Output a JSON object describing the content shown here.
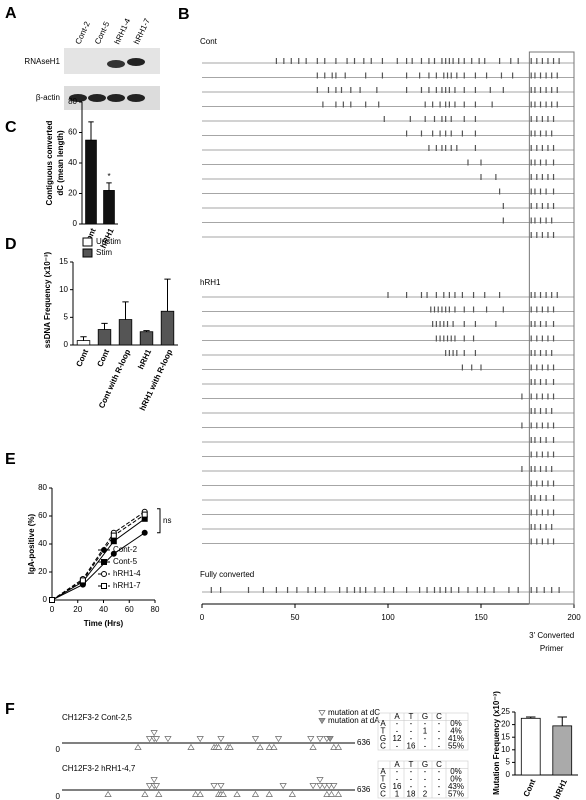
{
  "blot": {
    "panel": "A",
    "lanes": [
      "Cont-2",
      "Cont-5",
      "hRH1-4",
      "hRH1-7"
    ],
    "rows": [
      "RNAseH1",
      "β-actin"
    ]
  },
  "chart_data": [
    {
      "panel": "C",
      "type": "bar",
      "ylabel": [
        "Contiguous converted",
        "dC (mean length)"
      ],
      "categories": [
        "Cont",
        "hRH1"
      ],
      "series": [
        {
          "color": "#111111",
          "values": [
            55,
            22
          ],
          "errors": [
            12,
            5
          ]
        }
      ],
      "ylim": [
        0,
        80
      ],
      "yticks": [
        0,
        20,
        40,
        60,
        80
      ],
      "annotation": "*"
    },
    {
      "panel": "D",
      "type": "bar",
      "ylabel": [
        "ssDNA Frequency (x10⁻³)"
      ],
      "categories": [
        "Cont",
        "Cont",
        "Cont with R-loop",
        "hRH1",
        "hRH1 with R-loop"
      ],
      "series": [
        {
          "name": "Unstim",
          "color": "#ffffff",
          "values": [
            0.8,
            null,
            null,
            null,
            null
          ],
          "errors": [
            0.7,
            null,
            null,
            null,
            null
          ]
        },
        {
          "name": "Stim",
          "color": "#555555",
          "values": [
            null,
            2.8,
            4.6,
            2.4,
            6.1
          ],
          "errors": [
            null,
            1.1,
            3.2,
            0.2,
            5.8
          ]
        }
      ],
      "ylim": [
        0,
        15
      ],
      "yticks": [
        0,
        5,
        10,
        15
      ]
    },
    {
      "panel": "E",
      "type": "line",
      "xlabel": "Time (Hrs)",
      "ylabel": [
        "IgA-positive (%)"
      ],
      "x": [
        0,
        24,
        48,
        72
      ],
      "series": [
        {
          "name": "Cont-2",
          "color": "#000000",
          "marker": "circle",
          "filled": true,
          "dashed": false,
          "values": [
            0,
            11,
            33,
            48
          ]
        },
        {
          "name": "Cont-5",
          "color": "#000000",
          "marker": "square",
          "filled": true,
          "dashed": false,
          "values": [
            0,
            13,
            42,
            58
          ]
        },
        {
          "name": "hRH1-4",
          "color": "#000000",
          "marker": "circle",
          "filled": false,
          "dashed": true,
          "values": [
            0,
            15,
            48,
            63
          ]
        },
        {
          "name": "hRH1-7",
          "color": "#000000",
          "marker": "square",
          "filled": false,
          "dashed": true,
          "values": [
            0,
            14,
            46,
            61
          ]
        }
      ],
      "xlim": [
        0,
        80
      ],
      "ylim": [
        0,
        80
      ],
      "xticks": [
        0,
        20,
        40,
        60,
        80
      ],
      "yticks": [
        0,
        20,
        40,
        60,
        80
      ],
      "annotation": "ns"
    },
    {
      "panel": "B",
      "type": "event",
      "color": "#555555",
      "xlim": [
        0,
        200
      ],
      "xticks": [
        0,
        50,
        100,
        150,
        200
      ],
      "highlight": [
        176,
        200
      ],
      "annotation": [
        "3' Converted",
        "Primer"
      ],
      "groups": [
        {
          "title": "Cont",
          "rows": [
            [
              40,
              44,
              48,
              52,
              56,
              62,
              66,
              72,
              78,
              82,
              87,
              91,
              97,
              105,
              110,
              113,
              118,
              122,
              125,
              129,
              131,
              133,
              135,
              138,
              141,
              145,
              149,
              152,
              160,
              166,
              170,
              177,
              180,
              183,
              186,
              189,
              192
            ],
            [
              62,
              66,
              70,
              72,
              77,
              88,
              97,
              110,
              117,
              122,
              126,
              130,
              132,
              134,
              137,
              141,
              147,
              153,
              161,
              167,
              177,
              179,
              182,
              185,
              188,
              191
            ],
            [
              62,
              68,
              72,
              75,
              80,
              85,
              94,
              110,
              118,
              122,
              126,
              129,
              131,
              133,
              136,
              141,
              147,
              155,
              162,
              177,
              179,
              182,
              185,
              188,
              191
            ],
            [
              65,
              72,
              76,
              80,
              88,
              95,
              120,
              124,
              128,
              131,
              133,
              136,
              141,
              147,
              156,
              177,
              179,
              182,
              185,
              188,
              191
            ],
            [
              98,
              112,
              120,
              125,
              129,
              131,
              134,
              141,
              147,
              177,
              180,
              183,
              186,
              189
            ],
            [
              110,
              118,
              124,
              128,
              131,
              134,
              140,
              147,
              177,
              179,
              182,
              185,
              188
            ],
            [
              122,
              126,
              129,
              131,
              134,
              137,
              147,
              177,
              180,
              183,
              186,
              189
            ],
            [
              143,
              150,
              177,
              179,
              182,
              185,
              189
            ],
            [
              150,
              158,
              177,
              180,
              183,
              186,
              189
            ],
            [
              160,
              177,
              179,
              182,
              185,
              189
            ],
            [
              162,
              177,
              180,
              183,
              186,
              189
            ],
            [
              162,
              177,
              179,
              182,
              185,
              188
            ],
            [
              177,
              180,
              183,
              186,
              189
            ]
          ]
        },
        {
          "title": "hRH1",
          "rows": [
            [
              100,
              110,
              118,
              121,
              126,
              130,
              133,
              136,
              140,
              146,
              152,
              160,
              177,
              179,
              182,
              185,
              188,
              191
            ],
            [
              123,
              125,
              127,
              129,
              131,
              133,
              136,
              141,
              146,
              153,
              162,
              177,
              180,
              183,
              186,
              189
            ],
            [
              124,
              126,
              128,
              130,
              132,
              135,
              141,
              147,
              158,
              177,
              179,
              182,
              185,
              189
            ],
            [
              126,
              128,
              130,
              132,
              134,
              136,
              141,
              146,
              177,
              180,
              183,
              186,
              189
            ],
            [
              131,
              133,
              135,
              137,
              141,
              147,
              177,
              179,
              182,
              185,
              188
            ],
            [
              140,
              145,
              150,
              177,
              180,
              183,
              186,
              189
            ],
            [
              177,
              179,
              182,
              185,
              189
            ],
            [
              172,
              177,
              180,
              183,
              186,
              189
            ],
            [
              177,
              179,
              182,
              185,
              188
            ],
            [
              172,
              177,
              180,
              183,
              186,
              189
            ],
            [
              177,
              179,
              182,
              185,
              189
            ],
            [
              177,
              180,
              183,
              186,
              189
            ],
            [
              172,
              177,
              179,
              182,
              185,
              188
            ],
            [
              177,
              180,
              183,
              186,
              189
            ],
            [
              177,
              179,
              182,
              185,
              189
            ],
            [
              177,
              180,
              183,
              186,
              189
            ],
            [
              177,
              179,
              182,
              185,
              188
            ],
            [
              177,
              180,
              183,
              186,
              189
            ]
          ]
        },
        {
          "title": "Fully converted",
          "rows": [
            [
              5,
              10,
              25,
              33,
              40,
              46,
              51,
              57,
              61,
              66,
              74,
              78,
              82,
              85,
              88,
              93,
              98,
              103,
              110,
              117,
              121,
              125,
              128,
              131,
              134,
              138,
              143,
              148,
              152,
              157,
              165,
              170,
              177,
              180,
              184,
              188,
              192
            ]
          ]
        }
      ]
    },
    {
      "panel": "F",
      "type": "bar",
      "ylabel": [
        "Mutation Frequency (x10⁻³)"
      ],
      "categories": [
        "Cont",
        "hRH1"
      ],
      "series": [
        {
          "colors": [
            "#ffffff",
            "#aaaaaa"
          ],
          "values": [
            22.5,
            19.5
          ],
          "errors": [
            0.5,
            3.5
          ]
        }
      ],
      "ylim": [
        0,
        25
      ],
      "yticks": [
        0,
        5,
        10,
        15,
        20,
        25
      ]
    }
  ],
  "mutation_maps": {
    "legend": [
      "mutation at dC",
      "mutation at dA"
    ],
    "maps": [
      {
        "title": "CH12F3-2 Cont-2,5",
        "start": 0,
        "end": 636,
        "marks_above": [
          190,
          200,
          200,
          205,
          230,
          300,
          345,
          420,
          470,
          540,
          560,
          575
        ],
        "marks_below": [
          165,
          280,
          330,
          335,
          340,
          360,
          365,
          430,
          450,
          460,
          545,
          590,
          600
        ],
        "marks_dA": [
          582
        ],
        "table": {
          "header": [
            "A",
            "T",
            "G",
            "C"
          ],
          "rows": [
            {
              "base": "A",
              "cells": [
                "-",
                "-",
                "-",
                "-"
              ],
              "pct": "0%"
            },
            {
              "base": "T",
              "cells": [
                "-",
                "-",
                "1",
                "-"
              ],
              "pct": "4%"
            },
            {
              "base": "G",
              "cells": [
                "12",
                "-",
                "-",
                "-"
              ],
              "pct": "41%"
            },
            {
              "base": "C",
              "cells": [
                "-",
                "16",
                "-",
                "-"
              ],
              "pct": "55%"
            }
          ]
        }
      },
      {
        "title": "CH12F3-2 hRH1-4,7",
        "start": 0,
        "end": 636,
        "marks_above": [
          190,
          200,
          200,
          205,
          330,
          345,
          480,
          545,
          560,
          560,
          570,
          580,
          590
        ],
        "marks_below": [
          100,
          180,
          210,
          290,
          300,
          340,
          345,
          350,
          380,
          420,
          450,
          500,
          575,
          585,
          600
        ],
        "marks_dA": [],
        "table": {
          "header": [
            "A",
            "T",
            "G",
            "C"
          ],
          "rows": [
            {
              "base": "A",
              "cells": [
                "-",
                "-",
                "-",
                "-"
              ],
              "pct": "0%"
            },
            {
              "base": "T",
              "cells": [
                "-",
                "-",
                "-",
                "-"
              ],
              "pct": "0%"
            },
            {
              "base": "G",
              "cells": [
                "16",
                "-",
                "-",
                "-"
              ],
              "pct": "43%"
            },
            {
              "base": "C",
              "cells": [
                "1",
                "18",
                "2",
                "-"
              ],
              "pct": "57%"
            }
          ]
        }
      }
    ]
  }
}
